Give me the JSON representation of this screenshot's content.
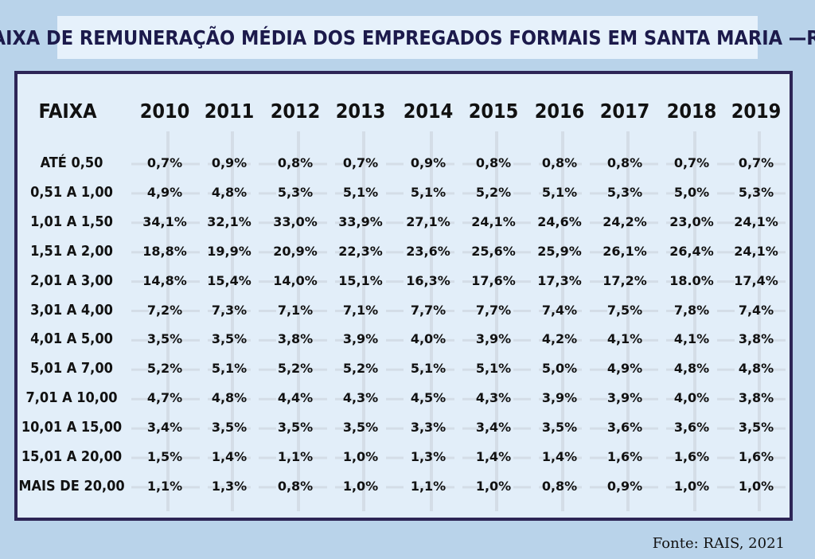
{
  "title": "FAIXA DE REMUNERAÇÃO MÉDIA DOS EMPREGADOS FORMAIS EM SANTA MARIA —RS",
  "source": "Fonte:  RAIS,  2021",
  "colors": {
    "background": "#b9d3ea",
    "panel": "#e2eef9",
    "border": "#2d2556",
    "title_text": "#1c1a4b"
  },
  "chart_data": {
    "type": "table",
    "title": "FAIXA DE REMUNERAÇÃO MÉDIA DOS EMPREGADOS FORMAIS EM SANTA MARIA —RS",
    "header_label": "FAIXA",
    "columns": [
      "2010",
      "2011",
      "2012",
      "2013",
      "2014",
      "2015",
      "2016",
      "2017",
      "2018",
      "2019"
    ],
    "rows": [
      {
        "label": "ATÉ 0,50",
        "values": [
          "0,7%",
          "0,9%",
          "0,8%",
          "0,7%",
          "0,9%",
          "0,8%",
          "0,8%",
          "0,8%",
          "0,7%",
          "0,7%"
        ]
      },
      {
        "label": "0,51 A 1,00",
        "values": [
          "4,9%",
          "4,8%",
          "5,3%",
          "5,1%",
          "5,1%",
          "5,2%",
          "5,1%",
          "5,3%",
          "5,0%",
          "5,3%"
        ]
      },
      {
        "label": "1,01 A 1,50",
        "values": [
          "34,1%",
          "32,1%",
          "33,0%",
          "33,9%",
          "27,1%",
          "24,1%",
          "24,6%",
          "24,2%",
          "23,0%",
          "24,1%"
        ]
      },
      {
        "label": "1,51 A 2,00",
        "values": [
          "18,8%",
          "19,9%",
          "20,9%",
          "22,3%",
          "23,6%",
          "25,6%",
          "25,9%",
          "26,1%",
          "26,4%",
          "24,1%"
        ]
      },
      {
        "label": "2,01 A 3,00",
        "values": [
          "14,8%",
          "15,4%",
          "14,0%",
          "15,1%",
          "16,3%",
          "17,6%",
          "17,3%",
          "17,2%",
          "18.0%",
          "17,4%"
        ]
      },
      {
        "label": "3,01 A 4,00",
        "values": [
          "7,2%",
          "7,3%",
          "7,1%",
          "7,1%",
          "7,7%",
          "7,7%",
          "7,4%",
          "7,5%",
          "7,8%",
          "7,4%"
        ]
      },
      {
        "label": "4,01 A 5,00",
        "values": [
          "3,5%",
          "3,5%",
          "3,8%",
          "3,9%",
          "4,0%",
          "3,9%",
          "4,2%",
          "4,1%",
          "4,1%",
          "3,8%"
        ]
      },
      {
        "label": "5,01 A 7,00",
        "values": [
          "5,2%",
          "5,1%",
          "5,2%",
          "5,2%",
          "5,1%",
          "5,1%",
          "5,0%",
          "4,9%",
          "4,8%",
          "4,8%"
        ]
      },
      {
        "label": "7,01 A 10,00",
        "values": [
          "4,7%",
          "4,8%",
          "4,4%",
          "4,3%",
          "4,5%",
          "4,3%",
          "3,9%",
          "3,9%",
          "4,0%",
          "3,8%"
        ]
      },
      {
        "label": "10,01 A 15,00",
        "values": [
          "3,4%",
          "3,5%",
          "3,5%",
          "3,5%",
          "3,3%",
          "3,4%",
          "3,5%",
          "3,6%",
          "3,6%",
          "3,5%"
        ]
      },
      {
        "label": "15,01 A 20,00",
        "values": [
          "1,5%",
          "1,4%",
          "1,1%",
          "1,0%",
          "1,3%",
          "1,4%",
          "1,4%",
          "1,6%",
          "1,6%",
          "1,6%"
        ]
      },
      {
        "label": "MAIS DE 20,00",
        "values": [
          "1,1%",
          "1,3%",
          "0,8%",
          "1,0%",
          "1,1%",
          "1,0%",
          "0,8%",
          "0,9%",
          "1,0%",
          "1,0%"
        ]
      }
    ]
  }
}
